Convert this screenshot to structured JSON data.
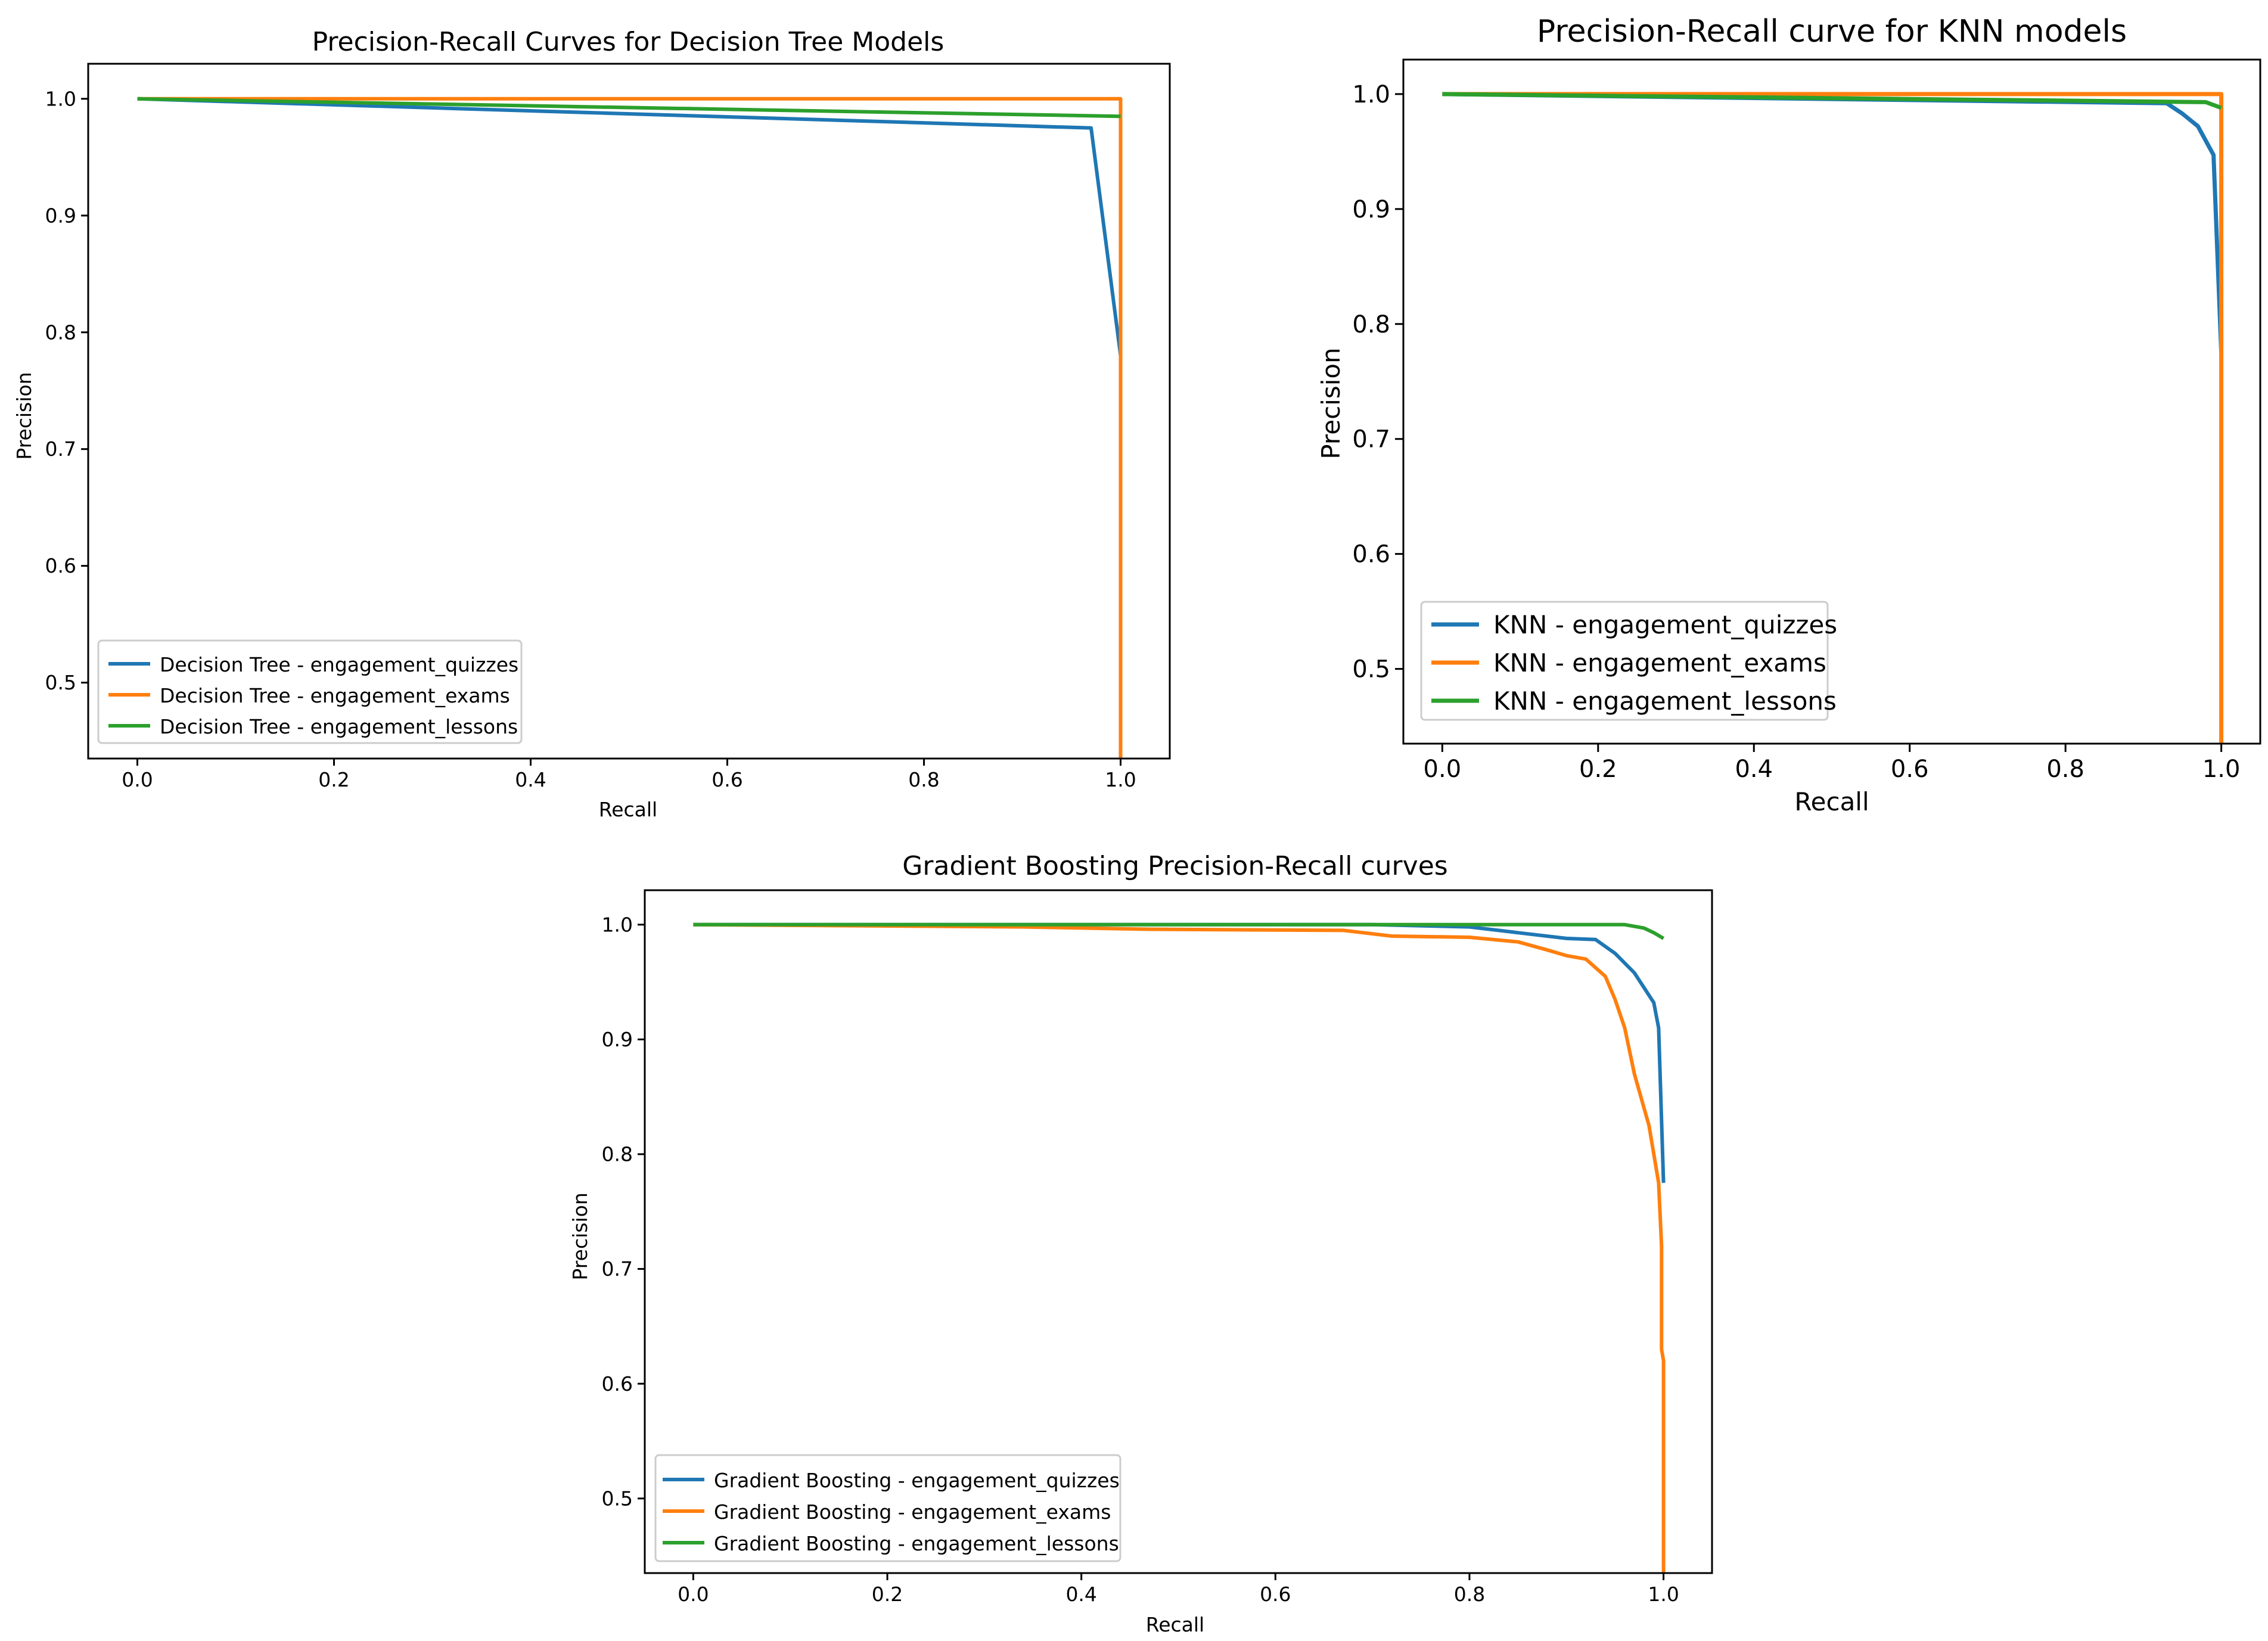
{
  "chart_data": [
    {
      "type": "line",
      "title": "Precision-Recall Curves for Decision Tree Models",
      "xlabel": "Recall",
      "ylabel": "Precision",
      "xlim": [
        -0.05,
        1.05
      ],
      "ylim": [
        0.435,
        1.03
      ],
      "xticks": [
        "0.0",
        "0.2",
        "0.4",
        "0.6",
        "0.8",
        "1.0"
      ],
      "yticks": [
        "0.5",
        "0.6",
        "0.7",
        "0.8",
        "0.9",
        "1.0"
      ],
      "grid": false,
      "legend_position": "lower-left",
      "series": [
        {
          "name": "Decision Tree - engagement_quizzes",
          "color": "#1f77b4",
          "x": [
            0.0,
            0.97,
            1.0,
            1.0
          ],
          "y": [
            1.0,
            0.975,
            0.78,
            0.78
          ]
        },
        {
          "name": "Decision Tree - engagement_exams",
          "color": "#ff7f0e",
          "x": [
            0.0,
            1.0,
            1.0
          ],
          "y": [
            1.0,
            1.0,
            0.435
          ]
        },
        {
          "name": "Decision Tree - engagement_lessons",
          "color": "#2ca02c",
          "x": [
            0.0,
            1.0
          ],
          "y": [
            1.0,
            0.985
          ]
        }
      ]
    },
    {
      "type": "line",
      "title": "Precision-Recall curve for KNN models",
      "xlabel": "Recall",
      "ylabel": "Precision",
      "xlim": [
        -0.05,
        1.05
      ],
      "ylim": [
        0.435,
        1.03
      ],
      "xticks": [
        "0.0",
        "0.2",
        "0.4",
        "0.6",
        "0.8",
        "1.0"
      ],
      "yticks": [
        "0.5",
        "0.6",
        "0.7",
        "0.8",
        "0.9",
        "1.0"
      ],
      "grid": false,
      "legend_position": "lower-left",
      "series": [
        {
          "name": "KNN - engagement_quizzes",
          "color": "#1f77b4",
          "x": [
            0.0,
            0.93,
            0.95,
            0.97,
            0.99,
            1.0
          ],
          "y": [
            1.0,
            0.992,
            0.983,
            0.972,
            0.947,
            0.775
          ]
        },
        {
          "name": "KNN - engagement_exams",
          "color": "#ff7f0e",
          "x": [
            0.0,
            1.0,
            1.0
          ],
          "y": [
            1.0,
            1.0,
            0.435
          ]
        },
        {
          "name": "KNN - engagement_lessons",
          "color": "#2ca02c",
          "x": [
            0.0,
            0.98,
            1.0
          ],
          "y": [
            1.0,
            0.993,
            0.988
          ]
        }
      ]
    },
    {
      "type": "line",
      "title": "Gradient Boosting Precision-Recall curves",
      "xlabel": "Recall",
      "ylabel": "Precision",
      "xlim": [
        -0.05,
        1.05
      ],
      "ylim": [
        0.435,
        1.03
      ],
      "xticks": [
        "0.0",
        "0.2",
        "0.4",
        "0.6",
        "0.8",
        "1.0"
      ],
      "yticks": [
        "0.5",
        "0.6",
        "0.7",
        "0.8",
        "0.9",
        "1.0"
      ],
      "grid": false,
      "legend_position": "lower-left",
      "series": [
        {
          "name": "Gradient Boosting - engagement_quizzes",
          "color": "#1f77b4",
          "x": [
            0.0,
            0.7,
            0.8,
            0.85,
            0.9,
            0.93,
            0.95,
            0.97,
            0.98,
            0.99,
            0.995,
            1.0,
            1.0
          ],
          "y": [
            1.0,
            1.0,
            0.998,
            0.993,
            0.988,
            0.987,
            0.975,
            0.958,
            0.945,
            0.932,
            0.91,
            0.775,
            0.775
          ]
        },
        {
          "name": "Gradient Boosting - engagement_exams",
          "color": "#ff7f0e",
          "x": [
            0.0,
            0.18,
            0.34,
            0.47,
            0.67,
            0.72,
            0.8,
            0.85,
            0.88,
            0.9,
            0.92,
            0.94,
            0.95,
            0.96,
            0.965,
            0.97,
            0.98,
            0.985,
            0.99,
            0.995,
            0.998,
            0.998,
            1.0,
            1.0
          ],
          "y": [
            1.0,
            0.999,
            0.998,
            0.996,
            0.995,
            0.99,
            0.989,
            0.985,
            0.978,
            0.973,
            0.97,
            0.955,
            0.935,
            0.91,
            0.89,
            0.87,
            0.84,
            0.825,
            0.8,
            0.775,
            0.72,
            0.63,
            0.62,
            0.435
          ]
        },
        {
          "name": "Gradient Boosting - engagement_lessons",
          "color": "#2ca02c",
          "x": [
            0.0,
            0.96,
            0.98,
            0.99,
            1.0
          ],
          "y": [
            1.0,
            1.0,
            0.997,
            0.993,
            0.988
          ]
        }
      ]
    }
  ]
}
